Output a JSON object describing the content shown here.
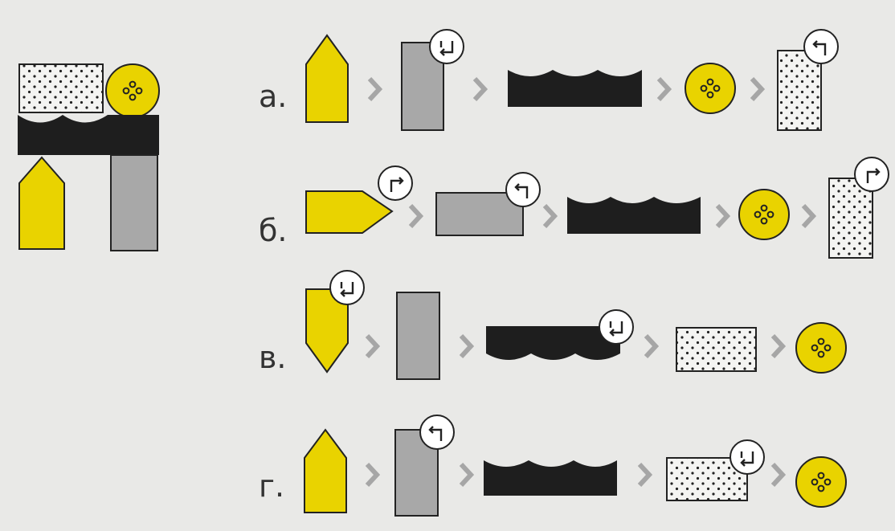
{
  "target": {
    "pieces": [
      "dotted-rectangle",
      "yellow-button",
      "black-wavy-bar",
      "yellow-pentagon",
      "gray-rectangle"
    ]
  },
  "options": [
    {
      "label": "а.",
      "steps": [
        "yellow-pentagon",
        "gray-rectangle",
        "black-wavy-bar",
        "yellow-button",
        "dotted-rectangle"
      ],
      "rotations": [
        "",
        "rotate-ccw-down-icon",
        "",
        "",
        "rotate-left-icon"
      ]
    },
    {
      "label": "б.",
      "steps": [
        "yellow-pentagon",
        "gray-rectangle",
        "black-wavy-bar",
        "yellow-button",
        "dotted-rectangle"
      ],
      "rotations": [
        "rotate-right-icon",
        "rotate-left-icon",
        "",
        "",
        "rotate-right-icon"
      ]
    },
    {
      "label": "в.",
      "steps": [
        "yellow-pentagon",
        "gray-rectangle",
        "black-wavy-bar",
        "dotted-rectangle",
        "yellow-button"
      ],
      "rotations": [
        "rotate-ccw-down-icon",
        "",
        "rotate-ccw-down-icon",
        "",
        ""
      ]
    },
    {
      "label": "г.",
      "steps": [
        "yellow-pentagon",
        "gray-rectangle",
        "black-wavy-bar",
        "dotted-rectangle",
        "yellow-button"
      ],
      "rotations": [
        "",
        "rotate-left-icon",
        "",
        "rotate-ccw-down-icon",
        ""
      ]
    }
  ],
  "colors": {
    "yellow": "#e9d300",
    "gray": "#a8a8a8",
    "black": "#1e1e1e",
    "dots_bg": "#f4f4f2",
    "chevron": "#a6a6a6",
    "outline": "#222222"
  }
}
